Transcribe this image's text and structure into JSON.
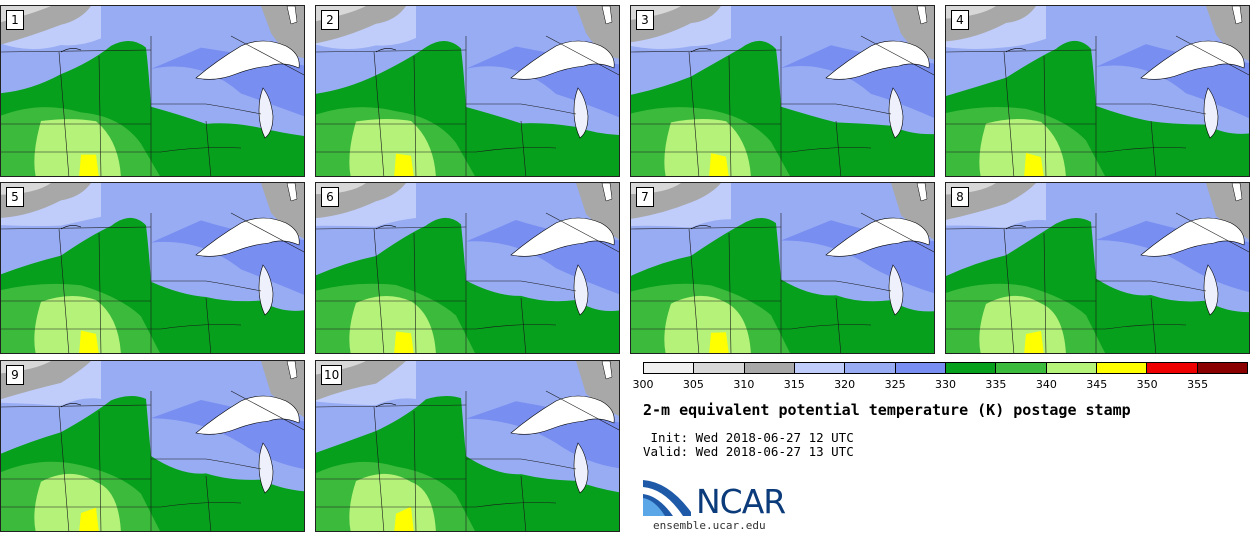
{
  "panels": [
    {
      "label": "1"
    },
    {
      "label": "2"
    },
    {
      "label": "3"
    },
    {
      "label": "4"
    },
    {
      "label": "5"
    },
    {
      "label": "6"
    },
    {
      "label": "7"
    },
    {
      "label": "8"
    },
    {
      "label": "9"
    },
    {
      "label": "10"
    }
  ],
  "colorbar": {
    "colors": [
      "#f0f0f0",
      "#d8d8d8",
      "#a8a8a8",
      "#c0cdfa",
      "#98acf4",
      "#788ef0",
      "#06a01c",
      "#3cba3c",
      "#b4f27a",
      "#ffff00",
      "#ee0000",
      "#8a0000"
    ],
    "ticks": [
      "300",
      "305",
      "310",
      "315",
      "320",
      "325",
      "330",
      "335",
      "340",
      "345",
      "350",
      "355"
    ]
  },
  "title": "2-m equivalent potential temperature (K) postage stamp",
  "init": " Init: Wed 2018-06-27 12 UTC",
  "valid": "Valid: Wed 2018-06-27 13 UTC",
  "logo": {
    "name": "NCAR",
    "brand_color": "#0b3b7a",
    "accent": "#3a8fd6"
  },
  "url": "ensemble.ucar.edu"
}
